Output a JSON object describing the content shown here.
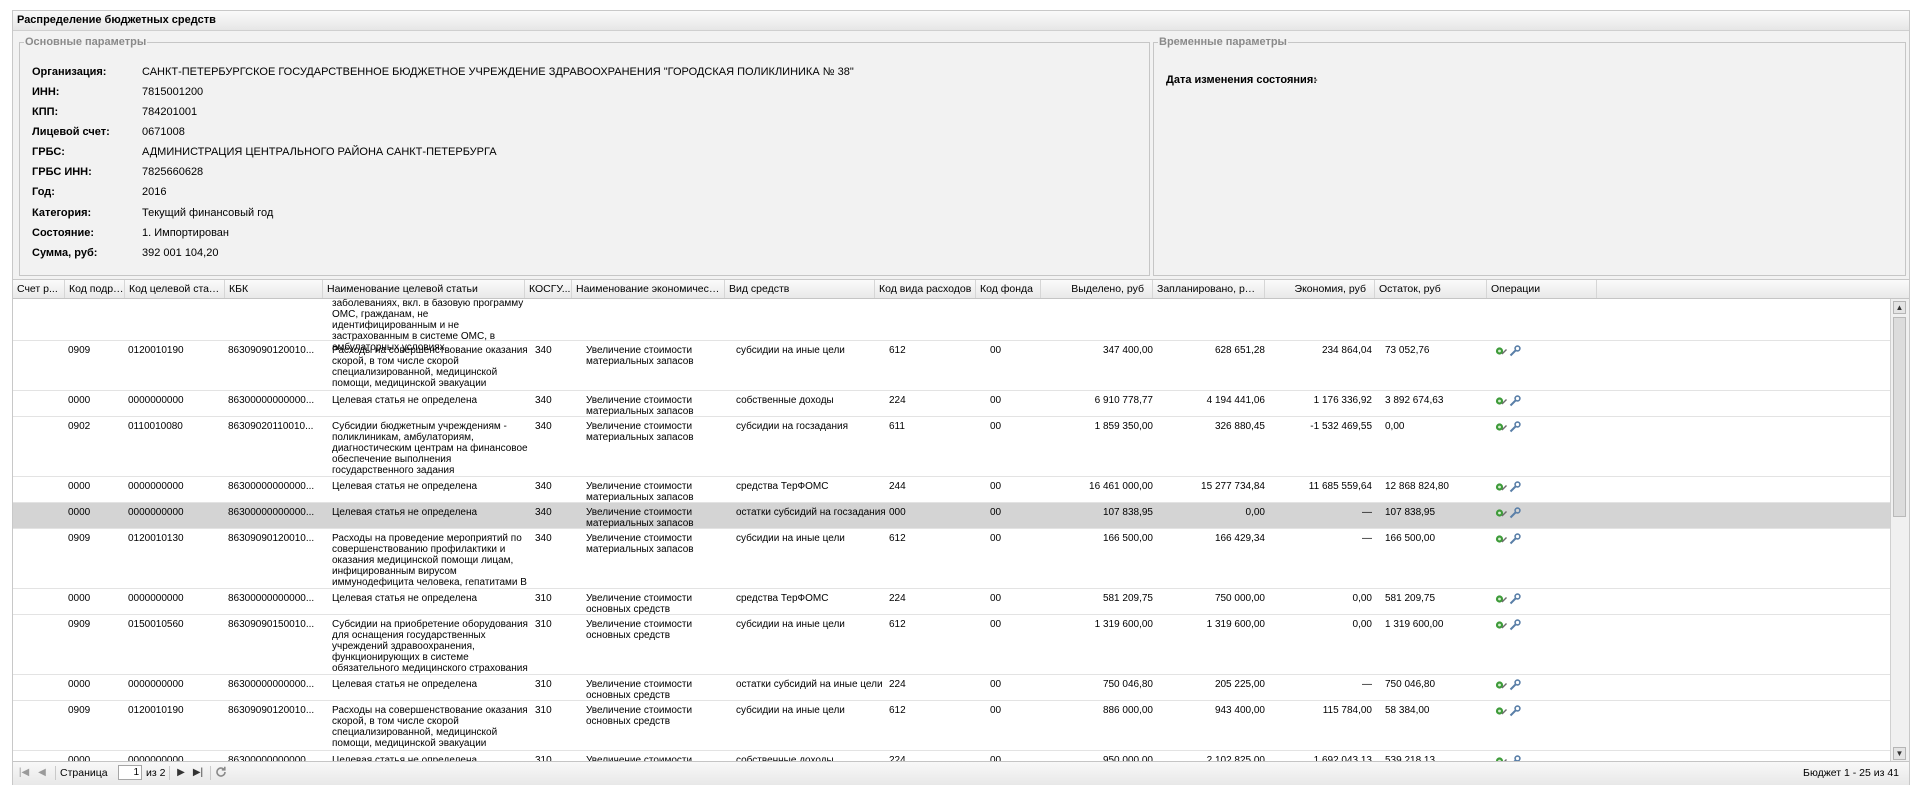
{
  "window": {
    "title": "Распределение бюджетных средств"
  },
  "main_params": {
    "legend": "Основные параметры",
    "fields": [
      {
        "label": "Организация:",
        "value": "САНКТ-ПЕТЕРБУРГСКОЕ ГОСУДАРСТВЕННОЕ БЮДЖЕТНОЕ УЧРЕЖДЕНИЕ ЗДРАВООХРАНЕНИЯ \"ГОРОДСКАЯ ПОЛИКЛИНИКА № 38\""
      },
      {
        "label": "ИНН:",
        "value": "7815001200"
      },
      {
        "label": "КПП:",
        "value": "784201001"
      },
      {
        "label": "Лицевой счет:",
        "value": "0671008"
      },
      {
        "label": "ГРБС:",
        "value": "АДМИНИСТРАЦИЯ ЦЕНТРАЛЬНОГО РАЙОНА САНКТ-ПЕТЕРБУРГА"
      },
      {
        "label": "ГРБС ИНН:",
        "value": "7825660628"
      },
      {
        "label": "Год:",
        "value": "2016"
      },
      {
        "label": "Категория:",
        "value": "Текущий финансовый год"
      },
      {
        "label": "Состояние:",
        "value": "1. Импортирован"
      },
      {
        "label": "Сумма, руб:",
        "value": "392 001 104,20"
      }
    ]
  },
  "temp_params": {
    "legend": "Временные параметры",
    "date_label": "Дата изменения состояния:",
    "date_value": "-"
  },
  "grid": {
    "columns": [
      "Счет р...",
      "Код подра...",
      "Код целевой статьи",
      "КБК",
      "Наименование целевой статьи",
      "КОСГУ...",
      "Наименование экономической ...",
      "Вид средств",
      "Код вида расходов",
      "Код фонда",
      "Выделено, руб",
      "Запланировано, руб",
      "Экономия, руб",
      "Остаток, руб",
      "Операции"
    ],
    "partial_row_text": "заболеваниях, вкл. в базовую программу ОМС, гражданам, не идентифицированным и не застрахованным в системе ОМС, в амбулаторных условиях",
    "rows": [
      {
        "podr": "0909",
        "kcs": "0120010190",
        "kbk": "86309090120010...",
        "name": "Расходы на совершенствование оказания скорой, в том числе скорой специализированной, медицинской помощи, медицинской эвакуации",
        "kosgu": "340",
        "econ": "Увеличение стоимости материальных запасов",
        "vid": "субсидии на иные цели",
        "kvr": "612",
        "fund": "00",
        "alloc": "347 400,00",
        "plan": "628 651,28",
        "econom": "234 864,04",
        "rest": "73 052,76"
      },
      {
        "podr": "0000",
        "kcs": "0000000000",
        "kbk": "86300000000000...",
        "name": "Целевая статья не определена",
        "kosgu": "340",
        "econ": "Увеличение стоимости материальных запасов",
        "vid": "собственные доходы",
        "kvr": "224",
        "fund": "00",
        "alloc": "6 910 778,77",
        "plan": "4 194 441,06",
        "econom": "1 176 336,92",
        "rest": "3 892 674,63"
      },
      {
        "podr": "0902",
        "kcs": "0110010080",
        "kbk": "86309020110010...",
        "name": "Субсидии бюджетным учреждениям - поликлиникам, амбулаториям, диагностическим центрам на финансовое обеспечение выполнения государственного задания",
        "kosgu": "340",
        "econ": "Увеличение стоимости материальных запасов",
        "vid": "субсидии на госзадания",
        "kvr": "611",
        "fund": "00",
        "alloc": "1 859 350,00",
        "plan": "326 880,45",
        "econom": "-1 532 469,55",
        "rest": "0,00"
      },
      {
        "podr": "0000",
        "kcs": "0000000000",
        "kbk": "86300000000000...",
        "name": "Целевая статья не определена",
        "kosgu": "340",
        "econ": "Увеличение стоимости материальных запасов",
        "vid": "средства ТерФОМС",
        "kvr": "244",
        "fund": "00",
        "alloc": "16 461 000,00",
        "plan": "15 277 734,84",
        "econom": "11 685 559,64",
        "rest": "12 868 824,80"
      },
      {
        "podr": "0000",
        "kcs": "0000000000",
        "kbk": "86300000000000...",
        "name": "Целевая статья не определена",
        "kosgu": "340",
        "econ": "Увеличение стоимости материальных запасов",
        "vid": "остатки субсидий на госзадания",
        "kvr": "000",
        "fund": "00",
        "alloc": "107 838,95",
        "plan": "0,00",
        "econom": "—",
        "rest": "107 838,95",
        "selected": true
      },
      {
        "podr": "0909",
        "kcs": "0120010130",
        "kbk": "86309090120010...",
        "name": "Расходы на проведение мероприятий по совершенствованию профилактики и оказания медицинской помощи лицам, инфицированным вирусом иммунодефицита человека, гепатитами B и C",
        "kosgu": "340",
        "econ": "Увеличение стоимости материальных запасов",
        "vid": "субсидии на иные цели",
        "kvr": "612",
        "fund": "00",
        "alloc": "166 500,00",
        "plan": "166 429,34",
        "econom": "—",
        "rest": "166 500,00"
      },
      {
        "podr": "0000",
        "kcs": "0000000000",
        "kbk": "86300000000000...",
        "name": "Целевая статья не определена",
        "kosgu": "310",
        "econ": "Увеличение стоимости основных средств",
        "vid": "средства ТерФОМС",
        "kvr": "224",
        "fund": "00",
        "alloc": "581 209,75",
        "plan": "750 000,00",
        "econom": "0,00",
        "rest": "581 209,75"
      },
      {
        "podr": "0909",
        "kcs": "0150010560",
        "kbk": "86309090150010...",
        "name": "Субсидии на приобретение оборудования для оснащения государственных учреждений здравоохранения, функционирующих в системе обязательного медицинского страхования",
        "kosgu": "310",
        "econ": "Увеличение стоимости основных средств",
        "vid": "субсидии на иные цели",
        "kvr": "612",
        "fund": "00",
        "alloc": "1 319 600,00",
        "plan": "1 319 600,00",
        "econom": "0,00",
        "rest": "1 319 600,00"
      },
      {
        "podr": "0000",
        "kcs": "0000000000",
        "kbk": "86300000000000...",
        "name": "Целевая статья не определена",
        "kosgu": "310",
        "econ": "Увеличение стоимости основных средств",
        "vid": "остатки субсидий на иные цели",
        "kvr": "224",
        "fund": "00",
        "alloc": "750 046,80",
        "plan": "205 225,00",
        "econom": "—",
        "rest": "750 046,80"
      },
      {
        "podr": "0909",
        "kcs": "0120010190",
        "kbk": "86309090120010...",
        "name": "Расходы на совершенствование оказания скорой, в том числе скорой специализированной, медицинской помощи, медицинской эвакуации",
        "kosgu": "310",
        "econ": "Увеличение стоимости основных средств",
        "vid": "субсидии на иные цели",
        "kvr": "612",
        "fund": "00",
        "alloc": "886 000,00",
        "plan": "943 400,00",
        "econom": "115 784,00",
        "rest": "58 384,00"
      },
      {
        "podr": "0000",
        "kcs": "0000000000",
        "kbk": "86300000000000...",
        "name": "Целевая статья не определена",
        "kosgu": "310",
        "econ": "Увеличение стоимости основных средств",
        "vid": "собственные доходы",
        "kvr": "224",
        "fund": "00",
        "alloc": "950 000,00",
        "plan": "2 102 825,00",
        "econom": "1 692 043,13",
        "rest": "539 218,13"
      }
    ]
  },
  "pager": {
    "page_label": "Страница",
    "page_value": "1",
    "of_label": "из 2",
    "summary": "Бюджет 1 - 25 из 41"
  },
  "icons": {
    "edit": "edit-icon",
    "settings": "wrench-icon",
    "first": "first-page-icon",
    "prev": "prev-page-icon",
    "next": "next-page-icon",
    "last": "last-page-icon",
    "refresh": "refresh-icon"
  }
}
